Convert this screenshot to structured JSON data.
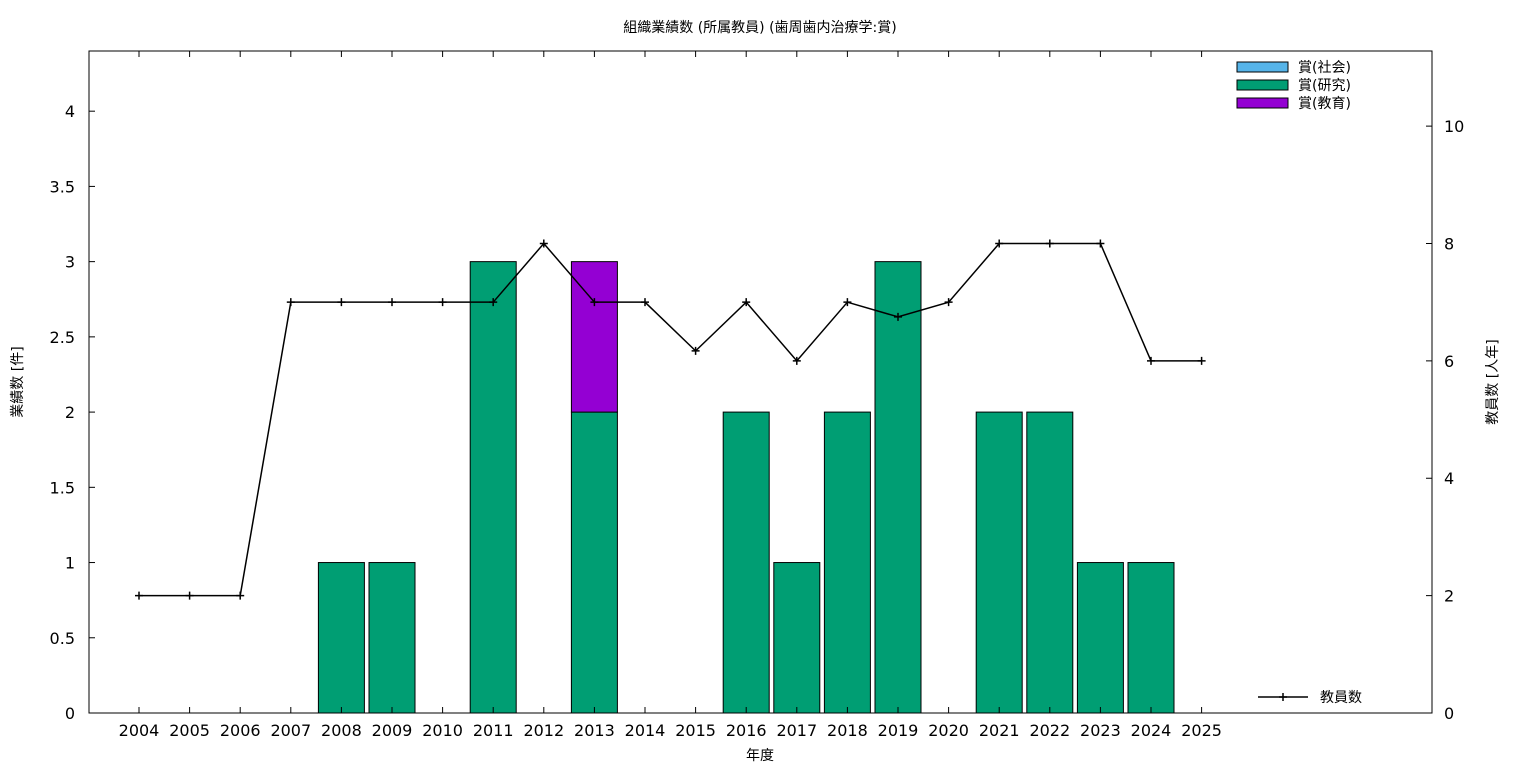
{
  "chart_data": {
    "type": "bar",
    "title": "組織業績数 (所属教員) (歯周歯内治療学:賞)",
    "xlabel": "年度",
    "ylabel": "業績数 [件]",
    "y2label": "教員数 [人年]",
    "categories": [
      "2004",
      "2005",
      "2006",
      "2007",
      "2008",
      "2009",
      "2010",
      "2011",
      "2012",
      "2013",
      "2014",
      "2015",
      "2016",
      "2017",
      "2018",
      "2019",
      "2020",
      "2021",
      "2022",
      "2023",
      "2024",
      "2025"
    ],
    "ylim": [
      0,
      4.4
    ],
    "y_ticks": [
      "0",
      "0.5",
      "1",
      "1.5",
      "2",
      "2.5",
      "3",
      "3.5",
      "4"
    ],
    "y2lim": [
      0,
      11.28
    ],
    "y2_ticks": [
      "0",
      "2",
      "4",
      "6",
      "8",
      "10"
    ],
    "stacked": true,
    "series": [
      {
        "name": "賞(社会)",
        "color": "#56b4e9",
        "values": [
          0,
          0,
          0,
          0,
          0,
          0,
          0,
          0,
          0,
          0,
          0,
          0,
          0,
          0,
          0,
          0,
          0,
          0,
          0,
          0,
          0,
          0
        ]
      },
      {
        "name": "賞(研究)",
        "color": "#009e73",
        "values": [
          0,
          0,
          0,
          0,
          1,
          1,
          0,
          3,
          0,
          2,
          0,
          0,
          2,
          1,
          2,
          3,
          0,
          2,
          2,
          1,
          1,
          0
        ]
      },
      {
        "name": "賞(教育)",
        "color": "#9400d3",
        "values": [
          0,
          0,
          0,
          0,
          0,
          0,
          0,
          0,
          0,
          1,
          0,
          0,
          0,
          0,
          0,
          0,
          0,
          0,
          0,
          0,
          0,
          0
        ]
      }
    ],
    "line_series": {
      "name": "教員数",
      "color": "#000000",
      "axis": "y2",
      "values": [
        2,
        2,
        2,
        7,
        7,
        7,
        7,
        7,
        8,
        7,
        7,
        6.17,
        7,
        6,
        7,
        6.75,
        7,
        8,
        8,
        8,
        6,
        6
      ]
    },
    "legend_position": "top-right",
    "line_legend_position": "bottom-right",
    "grid": false
  }
}
